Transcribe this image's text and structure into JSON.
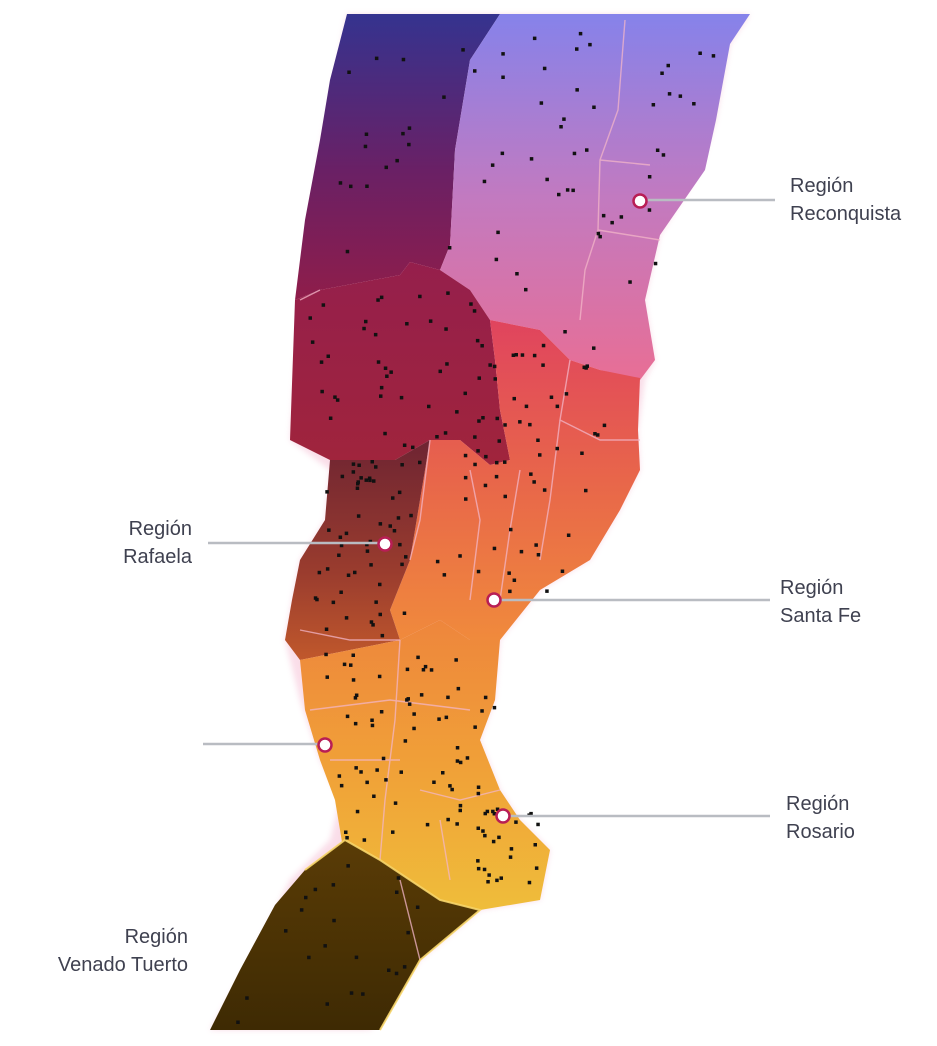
{
  "regions": [
    {
      "id": "reconquista",
      "line1": "Región",
      "line2": "Reconquista"
    },
    {
      "id": "rafaela",
      "line1": "Región",
      "line2": "Rafaela"
    },
    {
      "id": "santa-fe",
      "line1": "Región",
      "line2": "Santa Fe"
    },
    {
      "id": "rosario",
      "line1": "Región",
      "line2": "Rosario"
    },
    {
      "id": "venado-tuerto",
      "line1": "Región",
      "line2": "Venado Tuerto"
    }
  ],
  "colors": {
    "reconquista": [
      "#8a84ea",
      "#e06f9c"
    ],
    "norte_oeste": [
      "#3a3596",
      "#8e1f4c"
    ],
    "rafaela": [
      "#7a2a3a",
      "#b5502e"
    ],
    "santa_fe": [
      "#e0535f",
      "#ee8a45"
    ],
    "rosario": [
      "#f08a3c",
      "#f0bc3c"
    ],
    "venado_tuerto": [
      "#6b4a08",
      "#4a3304"
    ],
    "label_text": "#3f4150",
    "leader_line": "#b9bcc2",
    "marker": "#b81e55"
  }
}
